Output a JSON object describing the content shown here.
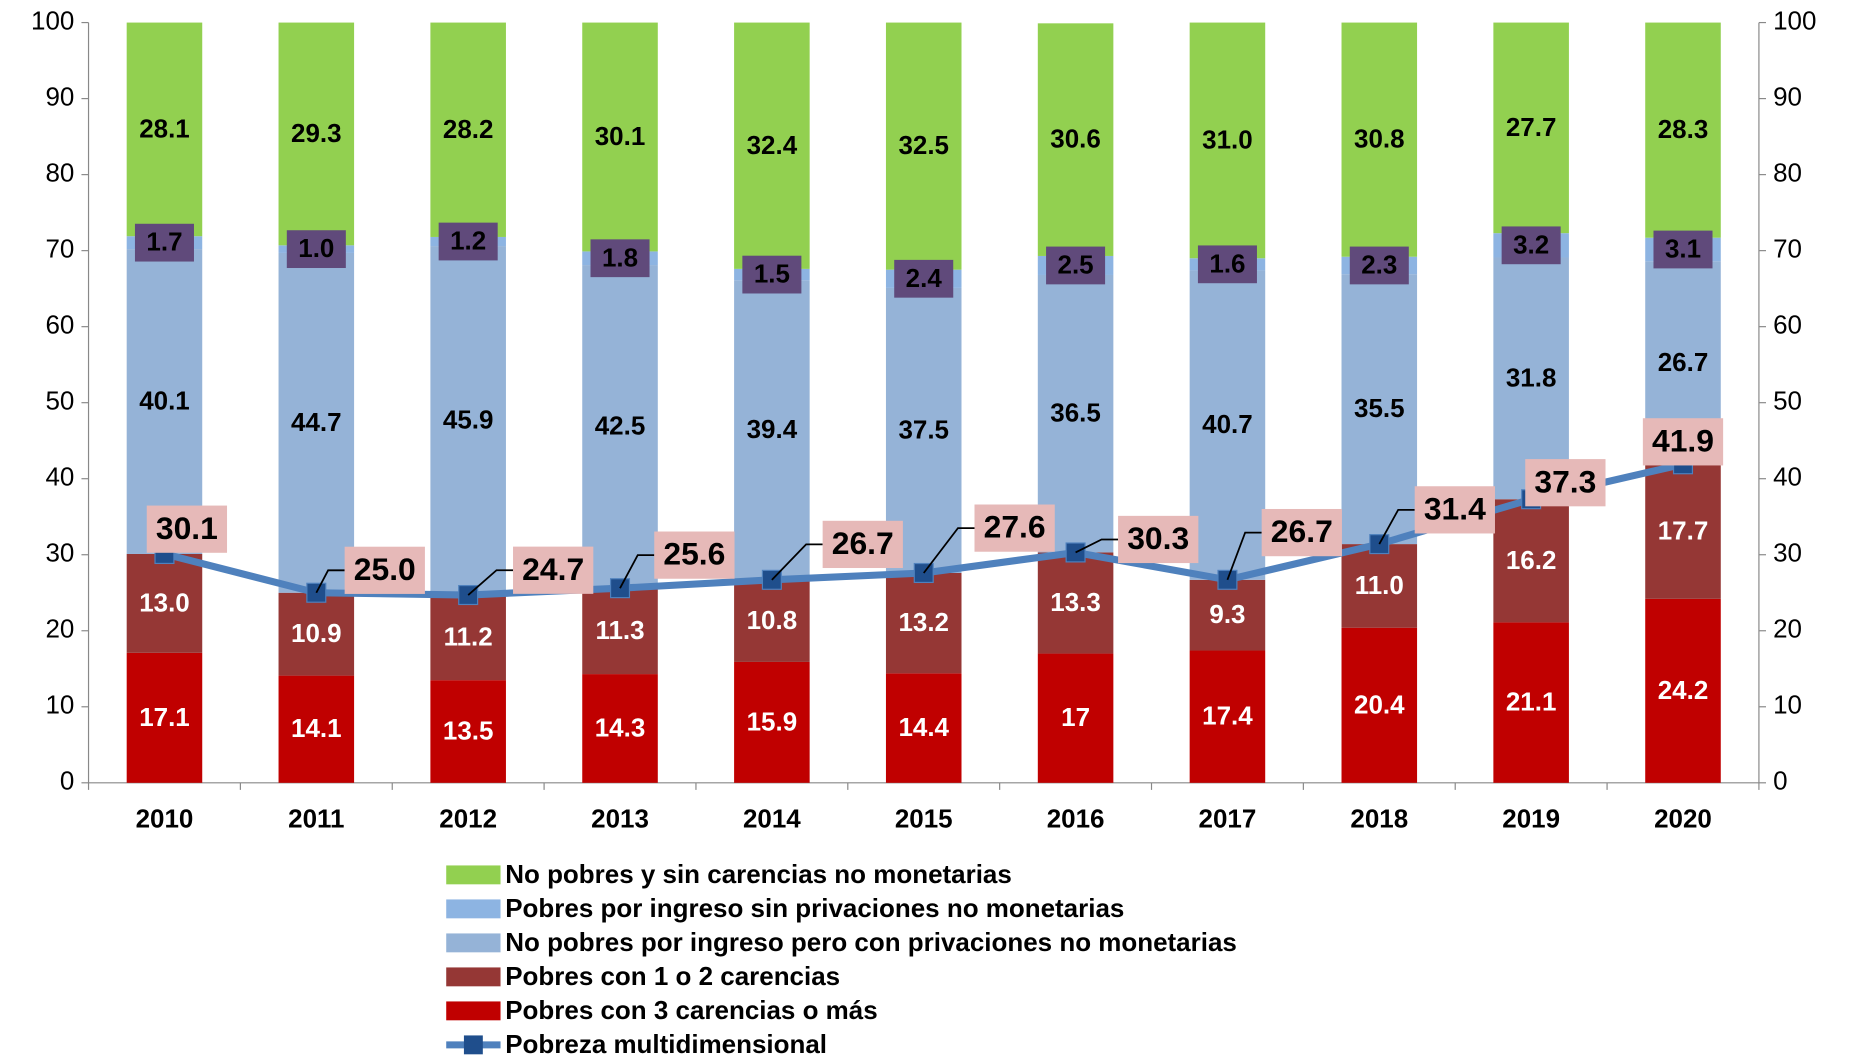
{
  "chart_data": {
    "type": "bar",
    "stacked": true,
    "categories": [
      "2010",
      "2011",
      "2012",
      "2013",
      "2014",
      "2015",
      "2016",
      "2017",
      "2018",
      "2019",
      "2020"
    ],
    "ylim": [
      0,
      100
    ],
    "yticks": [
      0,
      10,
      20,
      30,
      40,
      50,
      60,
      70,
      80,
      90,
      100
    ],
    "y2lim": [
      0,
      100
    ],
    "y2ticks": [
      0,
      10,
      20,
      30,
      40,
      50,
      60,
      70,
      80,
      90,
      100
    ],
    "series": [
      {
        "name": "Pobres con 3 carencias o más",
        "color": "#c00000",
        "label_color": "#ffffff",
        "values": [
          17.1,
          14.1,
          13.5,
          14.3,
          15.9,
          14.4,
          17,
          17.4,
          20.4,
          21.1,
          24.2
        ],
        "value_labels": [
          "17.1",
          "14.1",
          "13.5",
          "14.3",
          "15.9",
          "14.4",
          "17",
          "17.4",
          "20.4",
          "21.1",
          "24.2"
        ]
      },
      {
        "name": "Pobres con 1 o 2 carencias",
        "color": "#953735",
        "label_color": "#ffffff",
        "values": [
          13.0,
          10.9,
          11.2,
          11.3,
          10.8,
          13.2,
          13.3,
          9.3,
          11.0,
          16.2,
          17.7
        ],
        "value_labels": [
          "13.0",
          "10.9",
          "11.2",
          "11.3",
          "10.8",
          "13.2",
          "13.3",
          "9.3",
          "11.0",
          "16.2",
          "17.7"
        ]
      },
      {
        "name": "No pobres por ingreso pero con privaciones no monetarias",
        "color": "#95b3d7",
        "label_color": "#000000",
        "values": [
          40.1,
          44.7,
          45.9,
          42.5,
          39.4,
          37.5,
          36.5,
          40.7,
          35.5,
          31.8,
          26.7
        ],
        "value_labels": [
          "40.1",
          "44.7",
          "45.9",
          "42.5",
          "39.4",
          "37.5",
          "36.5",
          "40.7",
          "35.5",
          "31.8",
          "26.7"
        ]
      },
      {
        "name": "Pobres por ingreso sin privaciones no monetarias",
        "color": "#8db4e2",
        "label_color": "#000000",
        "label_box": "#604a7b",
        "values": [
          1.7,
          1.0,
          1.2,
          1.8,
          1.5,
          2.4,
          2.5,
          1.6,
          2.3,
          3.2,
          3.1
        ],
        "value_labels": [
          "1.7",
          "1.0",
          "1.2",
          "1.8",
          "1.5",
          "2.4",
          "2.5",
          "1.6",
          "2.3",
          "3.2",
          "3.1"
        ]
      },
      {
        "name": "No pobres y sin carencias no monetarias",
        "color": "#92d050",
        "label_color": "#000000",
        "values": [
          28.1,
          29.3,
          28.2,
          30.1,
          32.4,
          32.5,
          30.6,
          31.0,
          30.8,
          27.7,
          28.3
        ],
        "value_labels": [
          "28.1",
          "29.3",
          "28.2",
          "30.1",
          "32.4",
          "32.5",
          "30.6",
          "31.0",
          "30.8",
          "27.7",
          "28.3"
        ]
      },
      {
        "name": "Pobreza multidimensional",
        "type": "line",
        "color": "#4f81bd",
        "label_box": "#e6b9b8",
        "values": [
          30.1,
          25.0,
          24.7,
          25.6,
          26.7,
          27.6,
          30.3,
          26.7,
          31.4,
          37.3,
          41.9
        ],
        "value_labels": [
          "30.1",
          "25.0",
          "24.7",
          "25.6",
          "26.7",
          "27.6",
          "30.3",
          "26.7",
          "31.4",
          "37.3",
          "41.9"
        ]
      }
    ]
  }
}
